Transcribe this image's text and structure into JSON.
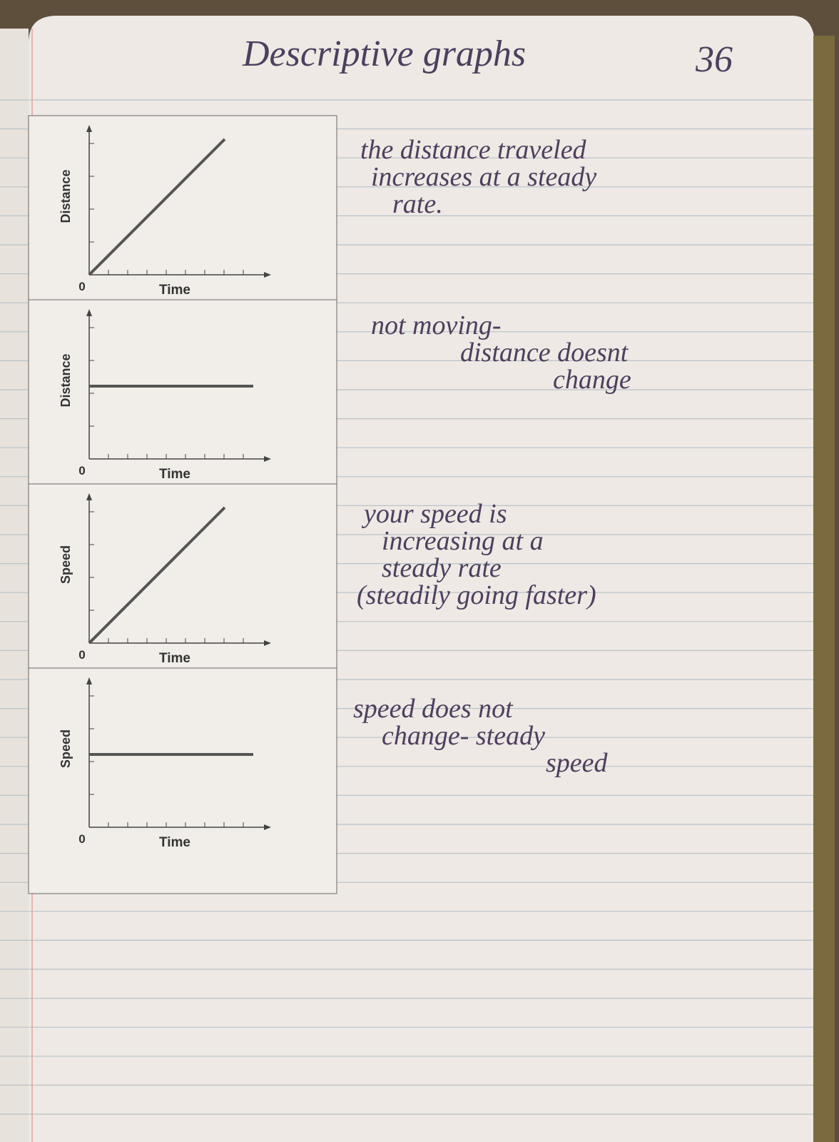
{
  "header": {
    "title": "Descriptive graphs",
    "page_number": "36"
  },
  "graphs": [
    {
      "y_label": "Distance",
      "x_label": "Time",
      "origin": "0"
    },
    {
      "y_label": "Distance",
      "x_label": "Time",
      "origin": "0"
    },
    {
      "y_label": "Speed",
      "x_label": "Time",
      "origin": "0"
    },
    {
      "y_label": "Speed",
      "x_label": "Time",
      "origin": "0"
    }
  ],
  "notes": [
    {
      "lines": [
        "the distance traveled",
        "increases at a steady",
        "rate."
      ]
    },
    {
      "lines": [
        "not moving-",
        "distance doesnt",
        "change"
      ]
    },
    {
      "lines": [
        "your speed is",
        "increasing at a",
        "steady rate",
        "(steadily going faster)"
      ]
    },
    {
      "lines": [
        "speed does not",
        "change- steady",
        "speed"
      ]
    }
  ]
}
